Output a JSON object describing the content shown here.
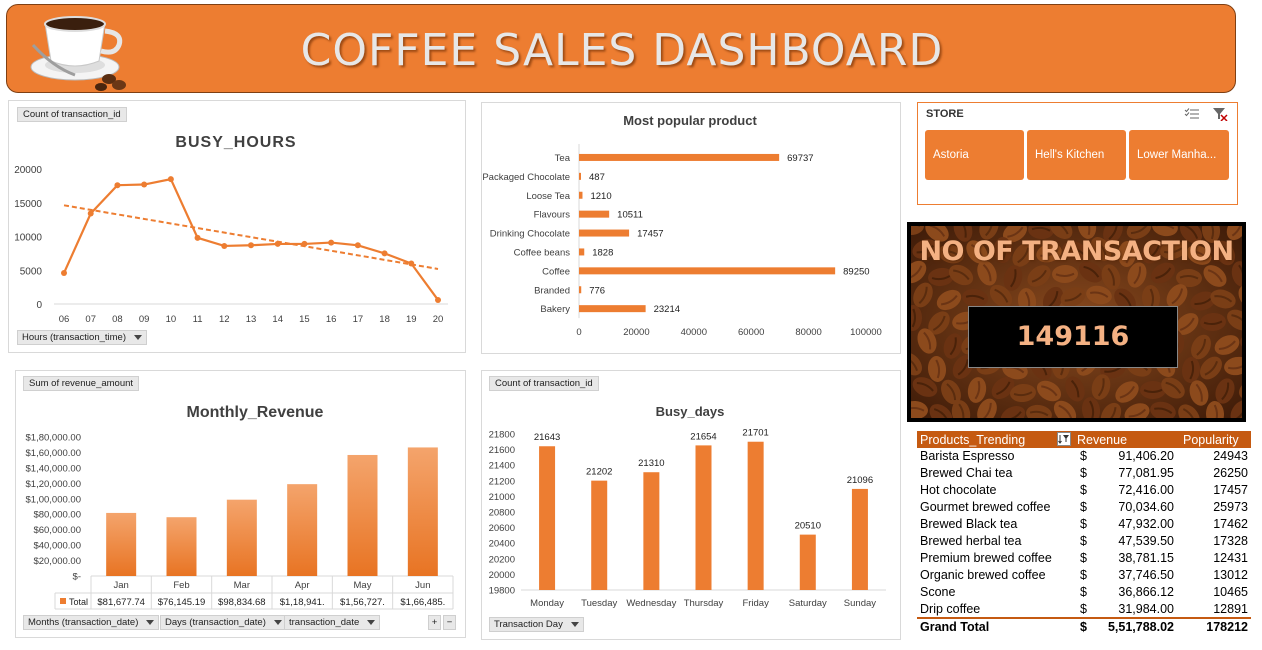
{
  "colors": {
    "accent": "#ED7D31",
    "dark_accent": "#C55A11",
    "title_text": "#E7E7E7",
    "axis_text": "#404040"
  },
  "header": {
    "title": "COFFEE SALES DASHBOARD",
    "logo_icon": "coffee-cup-icon"
  },
  "busy_hours": {
    "field_label": "Count of transaction_id",
    "filter_label": "Hours (transaction_time)"
  },
  "popular_product": {},
  "monthly_revenue": {
    "field_label": "Sum of revenue_amount",
    "filters": [
      "Months (transaction_date)",
      "Days (transaction_date)",
      "transaction_date"
    ],
    "total_row_label": "Total",
    "formatted_values": [
      "$81,677.74",
      "$76,145.19",
      "$98,834.68",
      "$1,18,941.",
      "$1,56,727.",
      "$1,66,485."
    ],
    "expand_buttons": [
      "+",
      "−"
    ]
  },
  "busy_days": {
    "field_label": "Count of transaction_id",
    "filter_label": "Transaction Day"
  },
  "store_slicer": {
    "header": "STORE",
    "multiselect_icon": "multi-select-icon",
    "clear_filter_icon": "clear-filter-icon",
    "items": [
      "Astoria",
      "Hell's Kitchen",
      "Lower Manha..."
    ]
  },
  "transactions_card": {
    "title": "NO OF TRANSACTION",
    "value": "149116"
  },
  "products_trending": {
    "headers": [
      "Products_Trending",
      "Revenue",
      "Popularity"
    ],
    "sort_icon": "sort-filter-icon",
    "rows": [
      {
        "name": "Barista Espresso",
        "currency": "$",
        "revenue": "91,406.20",
        "popularity": "24943"
      },
      {
        "name": "Brewed Chai tea",
        "currency": "$",
        "revenue": "77,081.95",
        "popularity": "26250"
      },
      {
        "name": "Hot chocolate",
        "currency": "$",
        "revenue": "72,416.00",
        "popularity": "17457"
      },
      {
        "name": "Gourmet brewed coffee",
        "currency": "$",
        "revenue": "70,034.60",
        "popularity": "25973"
      },
      {
        "name": "Brewed Black tea",
        "currency": "$",
        "revenue": "47,932.00",
        "popularity": "17462"
      },
      {
        "name": "Brewed herbal tea",
        "currency": "$",
        "revenue": "47,539.50",
        "popularity": "17328"
      },
      {
        "name": "Premium brewed coffee",
        "currency": "$",
        "revenue": "38,781.15",
        "popularity": "12431"
      },
      {
        "name": "Organic brewed coffee",
        "currency": "$",
        "revenue": "37,746.50",
        "popularity": "13012"
      },
      {
        "name": "Scone",
        "currency": "$",
        "revenue": "36,866.12",
        "popularity": "10465"
      },
      {
        "name": "Drip coffee",
        "currency": "$",
        "revenue": "31,984.00",
        "popularity": "12891"
      }
    ],
    "grand_total": {
      "label": "Grand Total",
      "currency": "$",
      "revenue": "5,51,788.02",
      "popularity": "178212"
    }
  },
  "chart_data": [
    {
      "type": "line",
      "title": "BUSY_HOURS",
      "categories": [
        "06",
        "07",
        "08",
        "09",
        "10",
        "11",
        "12",
        "13",
        "14",
        "15",
        "16",
        "17",
        "18",
        "19",
        "20"
      ],
      "values": [
        4600,
        13400,
        17600,
        17700,
        18500,
        9800,
        8600,
        8700,
        8900,
        8900,
        9100,
        8700,
        7500,
        6000,
        600
      ],
      "trendline": "linear",
      "y_ticks": [
        "0",
        "5000",
        "10000",
        "15000",
        "20000"
      ],
      "ylim": [
        0,
        20000
      ],
      "xlabel": "",
      "ylabel": ""
    },
    {
      "type": "bar",
      "orientation": "horizontal",
      "title": "Most popular product",
      "categories": [
        "Tea",
        "Packaged Chocolate",
        "Loose Tea",
        "Flavours",
        "Drinking Chocolate",
        "Coffee beans",
        "Coffee",
        "Branded",
        "Bakery"
      ],
      "values": [
        69737,
        487,
        1210,
        10511,
        17457,
        1828,
        89250,
        776,
        23214
      ],
      "x_ticks": [
        "0",
        "20000",
        "40000",
        "60000",
        "80000",
        "100000"
      ],
      "xlim": [
        0,
        100000
      ]
    },
    {
      "type": "bar",
      "title": "Monthly_Revenue",
      "categories": [
        "Jan",
        "Feb",
        "Mar",
        "Apr",
        "May",
        "Jun"
      ],
      "values": [
        81677.74,
        76145.19,
        98834.68,
        118941,
        156727,
        166485
      ],
      "y_ticks": [
        "$-",
        "$20,000.00",
        "$40,000.00",
        "$60,000.00",
        "$80,000.00",
        "$1,00,000.00",
        "$1,20,000.00",
        "$1,40,000.00",
        "$1,60,000.00",
        "$1,80,000.00"
      ],
      "ylim": [
        0,
        180000
      ]
    },
    {
      "type": "bar",
      "title": "Busy_days",
      "categories": [
        "Monday",
        "Tuesday",
        "Wednesday",
        "Thursday",
        "Friday",
        "Saturday",
        "Sunday"
      ],
      "values": [
        21643,
        21202,
        21310,
        21654,
        21701,
        20510,
        21096
      ],
      "y_ticks": [
        "19800",
        "20000",
        "20200",
        "20400",
        "20600",
        "20800",
        "21000",
        "21200",
        "21400",
        "21600",
        "21800"
      ],
      "ylim": [
        19800,
        21800
      ]
    }
  ]
}
